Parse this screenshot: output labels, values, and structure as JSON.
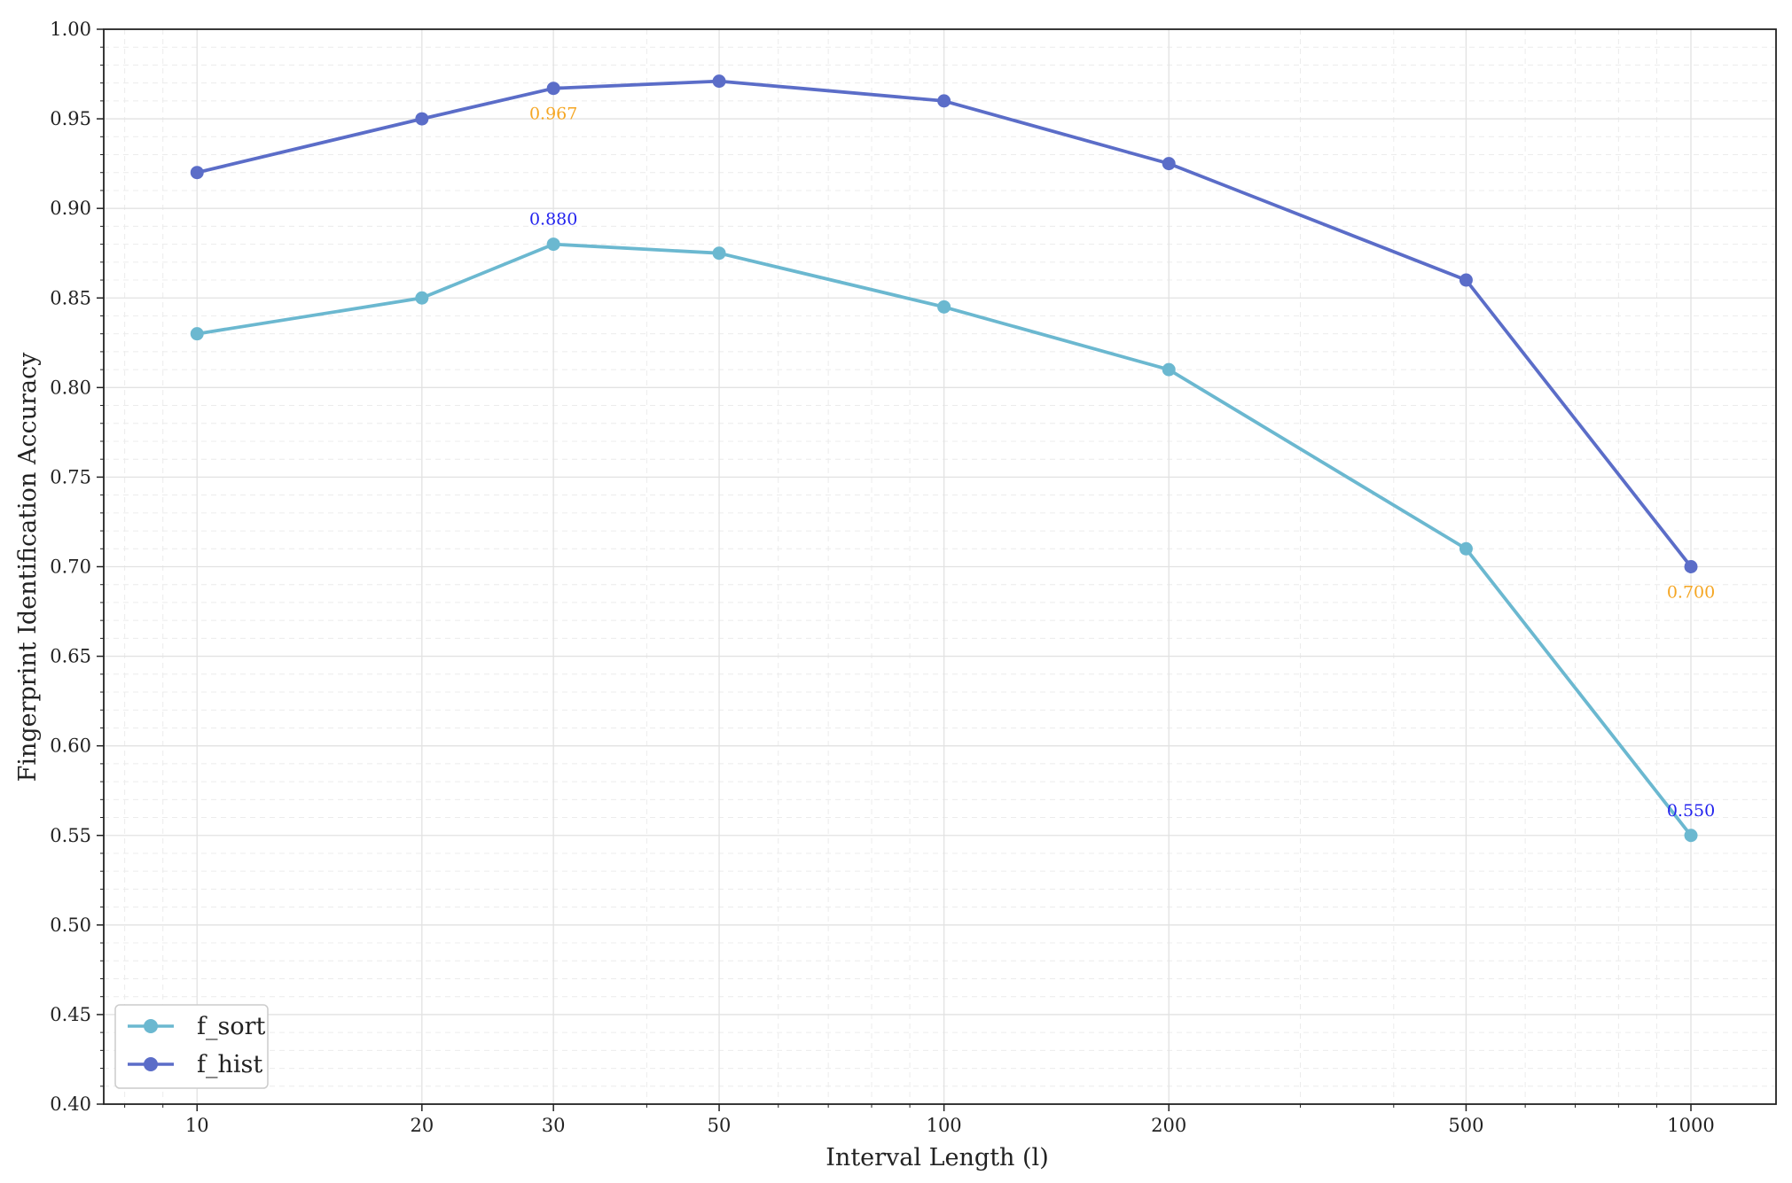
{
  "chart_data": {
    "type": "line",
    "title": "",
    "xlabel": "Interval Length (l)",
    "ylabel": "Fingerprint Identification Accuracy",
    "x_scale": "log",
    "x": [
      10,
      20,
      30,
      50,
      100,
      200,
      500,
      1000
    ],
    "x_tick_labels": [
      "10",
      "20",
      "30",
      "50",
      "100",
      "200",
      "500",
      "1000"
    ],
    "xlim": [
      7.5,
      1300
    ],
    "ylim": [
      0.4,
      1.0
    ],
    "y_ticks": [
      0.4,
      0.45,
      0.5,
      0.55,
      0.6,
      0.65,
      0.7,
      0.75,
      0.8,
      0.85,
      0.9,
      0.95,
      1.0
    ],
    "y_tick_labels": [
      "0.40",
      "0.45",
      "0.50",
      "0.55",
      "0.60",
      "0.65",
      "0.70",
      "0.75",
      "0.80",
      "0.85",
      "0.90",
      "0.95",
      "1.00"
    ],
    "grid": true,
    "legend_position": "lower-left",
    "series": [
      {
        "name": "f_sort",
        "color": "#6BB8D0",
        "values": [
          0.83,
          0.85,
          0.88,
          0.875,
          0.845,
          0.81,
          0.71,
          0.55
        ]
      },
      {
        "name": "f_hist",
        "color": "#5B6DC8",
        "values": [
          0.92,
          0.95,
          0.967,
          0.971,
          0.96,
          0.925,
          0.86,
          0.7
        ]
      }
    ],
    "annotations": [
      {
        "text": "0.967",
        "x": 30,
        "y": 0.967,
        "color": "#F5A623",
        "placement": "below"
      },
      {
        "text": "0.880",
        "x": 30,
        "y": 0.88,
        "color": "#2222EE",
        "placement": "above"
      },
      {
        "text": "0.700",
        "x": 1000,
        "y": 0.7,
        "color": "#F5A623",
        "placement": "below"
      },
      {
        "text": "0.550",
        "x": 1000,
        "y": 0.55,
        "color": "#2222EE",
        "placement": "above"
      }
    ]
  }
}
